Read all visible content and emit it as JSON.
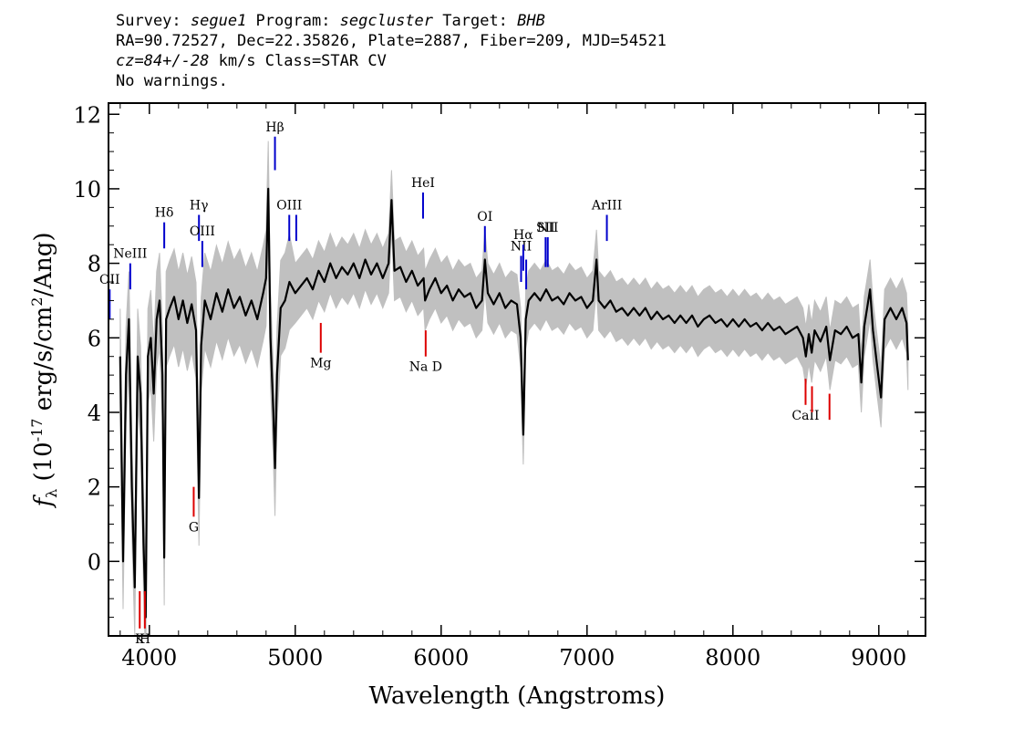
{
  "header": {
    "line1": {
      "survey_label": "Survey: ",
      "survey": "segue1",
      "program_label": " Program: ",
      "program": "segcluster",
      "target_label": " Target: ",
      "target": "BHB"
    },
    "line2": "RA=90.72527, Dec=22.35826, Plate=2887, Fiber=209, MJD=54521",
    "line3": {
      "cz": "cz=84+/-28",
      "rest": " km/s Class=STAR CV"
    },
    "line4": "No warnings."
  },
  "chart_data": {
    "type": "line",
    "xlabel": "Wavelength (Angstroms)",
    "ylabel_prefix": "f",
    "ylabel_sub": "λ",
    "ylabel_mid": " (10",
    "ylabel_exp": "-17",
    "ylabel_unit": " erg/s/cm",
    "ylabel_exp2": "2",
    "ylabel_end": "/Ang)",
    "xlim": [
      3720,
      9320
    ],
    "ylim": [
      -2,
      12.3
    ],
    "x_ticks": [
      4000,
      5000,
      6000,
      7000,
      8000,
      9000
    ],
    "x_tick_labels": [
      "4000",
      "5000",
      "6000",
      "7000",
      "8000",
      "9000"
    ],
    "y_ticks": [
      0,
      2,
      4,
      6,
      8,
      10,
      12
    ],
    "y_tick_labels": [
      "0",
      "2",
      "4",
      "6",
      "8",
      "10",
      "12"
    ],
    "grid": false,
    "colors": {
      "flux": "#000000",
      "error": "#c0c0c0",
      "emission": "#0000cc",
      "absorption": "#dd0000"
    },
    "series": [
      {
        "values": [
          [
            3800,
            5.5
          ],
          [
            3820,
            0.0
          ],
          [
            3840,
            5.0
          ],
          [
            3860,
            6.5
          ],
          [
            3880,
            2.0
          ],
          [
            3900,
            -0.7
          ],
          [
            3920,
            5.5
          ],
          [
            3940,
            4.5
          ],
          [
            3960,
            0.5
          ],
          [
            3975,
            -1.5
          ],
          [
            3990,
            5.5
          ],
          [
            4010,
            6.0
          ],
          [
            4030,
            4.5
          ],
          [
            4050,
            6.5
          ],
          [
            4070,
            7.0
          ],
          [
            4090,
            5.0
          ],
          [
            4102,
            0.1
          ],
          [
            4115,
            6.5
          ],
          [
            4140,
            6.8
          ],
          [
            4170,
            7.1
          ],
          [
            4200,
            6.5
          ],
          [
            4230,
            7.0
          ],
          [
            4260,
            6.4
          ],
          [
            4290,
            6.9
          ],
          [
            4320,
            6.2
          ],
          [
            4340,
            1.7
          ],
          [
            4355,
            5.8
          ],
          [
            4380,
            7.0
          ],
          [
            4420,
            6.5
          ],
          [
            4460,
            7.2
          ],
          [
            4500,
            6.7
          ],
          [
            4540,
            7.3
          ],
          [
            4580,
            6.8
          ],
          [
            4620,
            7.1
          ],
          [
            4660,
            6.6
          ],
          [
            4700,
            7.0
          ],
          [
            4740,
            6.5
          ],
          [
            4780,
            7.2
          ],
          [
            4800,
            7.6
          ],
          [
            4815,
            10.0
          ],
          [
            4830,
            6.0
          ],
          [
            4850,
            4.0
          ],
          [
            4861,
            2.5
          ],
          [
            4875,
            5.0
          ],
          [
            4900,
            6.8
          ],
          [
            4930,
            7.0
          ],
          [
            4960,
            7.5
          ],
          [
            5000,
            7.2
          ],
          [
            5040,
            7.4
          ],
          [
            5080,
            7.6
          ],
          [
            5120,
            7.3
          ],
          [
            5160,
            7.8
          ],
          [
            5200,
            7.5
          ],
          [
            5240,
            8.0
          ],
          [
            5280,
            7.6
          ],
          [
            5320,
            7.9
          ],
          [
            5360,
            7.7
          ],
          [
            5400,
            8.0
          ],
          [
            5440,
            7.6
          ],
          [
            5480,
            8.1
          ],
          [
            5520,
            7.7
          ],
          [
            5560,
            8.0
          ],
          [
            5600,
            7.6
          ],
          [
            5640,
            8.0
          ],
          [
            5660,
            9.7
          ],
          [
            5680,
            7.8
          ],
          [
            5720,
            7.9
          ],
          [
            5760,
            7.5
          ],
          [
            5800,
            7.8
          ],
          [
            5840,
            7.4
          ],
          [
            5880,
            7.6
          ],
          [
            5890,
            7.0
          ],
          [
            5920,
            7.3
          ],
          [
            5960,
            7.6
          ],
          [
            6000,
            7.2
          ],
          [
            6040,
            7.4
          ],
          [
            6080,
            7.0
          ],
          [
            6120,
            7.3
          ],
          [
            6160,
            7.1
          ],
          [
            6200,
            7.2
          ],
          [
            6240,
            6.8
          ],
          [
            6280,
            7.0
          ],
          [
            6300,
            8.1
          ],
          [
            6320,
            7.2
          ],
          [
            6360,
            6.9
          ],
          [
            6400,
            7.2
          ],
          [
            6440,
            6.8
          ],
          [
            6480,
            7.0
          ],
          [
            6520,
            6.9
          ],
          [
            6545,
            6.0
          ],
          [
            6563,
            3.4
          ],
          [
            6580,
            6.5
          ],
          [
            6600,
            7.0
          ],
          [
            6640,
            7.2
          ],
          [
            6680,
            7.0
          ],
          [
            6720,
            7.3
          ],
          [
            6760,
            7.0
          ],
          [
            6800,
            7.1
          ],
          [
            6840,
            6.9
          ],
          [
            6880,
            7.2
          ],
          [
            6920,
            7.0
          ],
          [
            6960,
            7.1
          ],
          [
            7000,
            6.8
          ],
          [
            7040,
            7.0
          ],
          [
            7065,
            8.1
          ],
          [
            7080,
            7.0
          ],
          [
            7120,
            6.8
          ],
          [
            7160,
            7.0
          ],
          [
            7200,
            6.7
          ],
          [
            7240,
            6.8
          ],
          [
            7280,
            6.6
          ],
          [
            7320,
            6.8
          ],
          [
            7360,
            6.6
          ],
          [
            7400,
            6.8
          ],
          [
            7440,
            6.5
          ],
          [
            7480,
            6.7
          ],
          [
            7520,
            6.5
          ],
          [
            7560,
            6.6
          ],
          [
            7600,
            6.4
          ],
          [
            7640,
            6.6
          ],
          [
            7680,
            6.4
          ],
          [
            7720,
            6.6
          ],
          [
            7760,
            6.3
          ],
          [
            7800,
            6.5
          ],
          [
            7840,
            6.6
          ],
          [
            7880,
            6.4
          ],
          [
            7920,
            6.5
          ],
          [
            7960,
            6.3
          ],
          [
            8000,
            6.5
          ],
          [
            8040,
            6.3
          ],
          [
            8080,
            6.5
          ],
          [
            8120,
            6.3
          ],
          [
            8160,
            6.4
          ],
          [
            8200,
            6.2
          ],
          [
            8240,
            6.4
          ],
          [
            8280,
            6.2
          ],
          [
            8320,
            6.3
          ],
          [
            8360,
            6.1
          ],
          [
            8400,
            6.2
          ],
          [
            8440,
            6.3
          ],
          [
            8480,
            6.0
          ],
          [
            8500,
            5.5
          ],
          [
            8520,
            6.1
          ],
          [
            8540,
            5.6
          ],
          [
            8560,
            6.2
          ],
          [
            8600,
            5.9
          ],
          [
            8640,
            6.3
          ],
          [
            8665,
            5.4
          ],
          [
            8700,
            6.2
          ],
          [
            8740,
            6.1
          ],
          [
            8780,
            6.3
          ],
          [
            8820,
            6.0
          ],
          [
            8860,
            6.1
          ],
          [
            8880,
            4.8
          ],
          [
            8900,
            6.3
          ],
          [
            8940,
            7.3
          ],
          [
            8960,
            6.2
          ],
          [
            8990,
            5.2
          ],
          [
            9015,
            4.4
          ],
          [
            9040,
            6.5
          ],
          [
            9080,
            6.8
          ],
          [
            9120,
            6.5
          ],
          [
            9160,
            6.8
          ],
          [
            9190,
            6.4
          ],
          [
            9200,
            5.4
          ]
        ]
      }
    ],
    "error_band_width": 0.8,
    "emission_lines": [
      {
        "label": "OII",
        "x": 3728,
        "y1": 6.5,
        "y2": 7.3
      },
      {
        "label": "NeIII",
        "x": 3869,
        "y1": 7.3,
        "y2": 8.0
      },
      {
        "label": "Hδ",
        "x": 4102,
        "y1": 8.4,
        "y2": 9.1
      },
      {
        "label": "Hγ",
        "x": 4340,
        "y1": 8.6,
        "y2": 9.3
      },
      {
        "label": "OIII",
        "x": 4363,
        "y1": 7.9,
        "y2": 8.6
      },
      {
        "label": "Hβ",
        "x": 4861,
        "y1": 10.5,
        "y2": 11.4
      },
      {
        "label": "OIII",
        "x": 4959,
        "y1": 8.6,
        "y2": 9.3
      },
      {
        "label": "",
        "x": 5007,
        "y1": 8.6,
        "y2": 9.3
      },
      {
        "label": "HeI",
        "x": 5876,
        "y1": 9.2,
        "y2": 9.9
      },
      {
        "label": "OI",
        "x": 6300,
        "y1": 8.3,
        "y2": 9.0
      },
      {
        "label": "NII",
        "x": 6548,
        "y1": 7.5,
        "y2": 8.2
      },
      {
        "label": "Hα",
        "x": 6563,
        "y1": 7.8,
        "y2": 8.5
      },
      {
        "label": "",
        "x": 6583,
        "y1": 7.3,
        "y2": 8.1
      },
      {
        "label": "SII",
        "x": 6716,
        "y1": 7.9,
        "y2": 8.7
      },
      {
        "label": "NII",
        "x": 6731,
        "y1": 7.9,
        "y2": 8.7
      },
      {
        "label": "ArIII",
        "x": 7136,
        "y1": 8.6,
        "y2": 9.3
      }
    ],
    "absorption_lines": [
      {
        "label": "K",
        "x": 3934,
        "y1": -1.8,
        "y2": -0.8
      },
      {
        "label": "H",
        "x": 3969,
        "y1": -1.8,
        "y2": -0.8
      },
      {
        "label": "G",
        "x": 4304,
        "y1": 1.2,
        "y2": 2.0
      },
      {
        "label": "Mg",
        "x": 5175,
        "y1": 5.6,
        "y2": 6.4
      },
      {
        "label": "Na D",
        "x": 5894,
        "y1": 5.5,
        "y2": 6.2
      },
      {
        "label": "CaII",
        "x": 8498,
        "y1": 4.2,
        "y2": 4.9
      },
      {
        "label": "",
        "x": 8542,
        "y1": 4.0,
        "y2": 4.7
      },
      {
        "label": "",
        "x": 8662,
        "y1": 3.8,
        "y2": 4.5
      }
    ]
  }
}
